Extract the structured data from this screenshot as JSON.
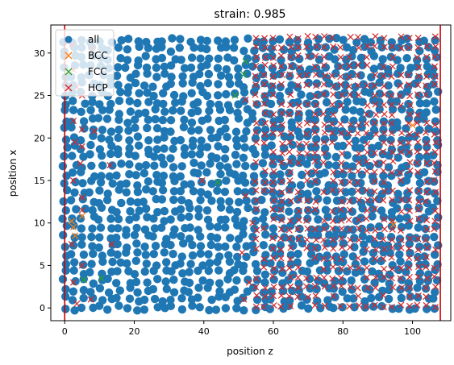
{
  "chart_data": {
    "type": "scatter",
    "title": "strain: 0.985",
    "xlabel": "position z",
    "ylabel": "position x",
    "xlim": [
      -4,
      111
    ],
    "ylim": [
      -1.5,
      33.3
    ],
    "xticks": [
      0,
      20,
      40,
      60,
      80,
      100
    ],
    "yticks": [
      0,
      5,
      10,
      15,
      20,
      25,
      30
    ],
    "grid": false,
    "legend_position": "top-left",
    "vertical_lines": [
      {
        "x": 0.0,
        "color": "#cc0000"
      },
      {
        "x": 108.0,
        "color": "#cc0000"
      }
    ],
    "series": [
      {
        "name": "all",
        "marker": "o",
        "color": "#1f77b4",
        "description": "dense cloud of atoms filling z 0–108, x 0–32"
      },
      {
        "name": "BCC",
        "marker": "x",
        "color": "#ff7f0e",
        "points": [
          [
            2.0,
            10.2
          ],
          [
            2.5,
            9.5
          ],
          [
            3.0,
            8.5
          ],
          [
            5.0,
            10.8
          ],
          [
            94.5,
            9.8
          ],
          [
            100.0,
            21.5
          ]
        ]
      },
      {
        "name": "FCC",
        "marker": "x",
        "color": "#2ca02c",
        "points": [
          [
            49.0,
            25.0
          ],
          [
            51.5,
            27.5
          ],
          [
            52.0,
            29.0
          ],
          [
            5.5,
            3.3
          ],
          [
            10.5,
            3.5
          ],
          [
            44.0,
            14.8
          ]
        ]
      },
      {
        "name": "HCP",
        "marker": "x",
        "color": "#d62728",
        "description": "crystalline lattice sites, sparse in z < 55 and dense grid for z 55–108",
        "sparse_points": [
          [
            2.0,
            31.0
          ],
          [
            2.5,
            28.0
          ],
          [
            3.5,
            26.0
          ],
          [
            5.0,
            25.0
          ],
          [
            2.5,
            22.0
          ],
          [
            5.0,
            21.0
          ],
          [
            8.5,
            20.8
          ],
          [
            3.0,
            19.5
          ],
          [
            5.0,
            19.0
          ],
          [
            4.5,
            17.0
          ],
          [
            2.5,
            15.0
          ],
          [
            5.0,
            13.0
          ],
          [
            13.0,
            16.8
          ],
          [
            5.0,
            11.5
          ],
          [
            2.0,
            7.5
          ],
          [
            13.5,
            7.5
          ],
          [
            5.0,
            5.0
          ],
          [
            2.5,
            3.0
          ],
          [
            7.5,
            1.0
          ],
          [
            3.5,
            0.5
          ],
          [
            39.5,
            15.0
          ],
          [
            52.0,
            13.2
          ],
          [
            54.0,
            10.0
          ],
          [
            51.0,
            6.5
          ],
          [
            53.0,
            3.0
          ],
          [
            51.5,
            1.0
          ],
          [
            52.0,
            24.5
          ],
          [
            8.0,
            30.5
          ]
        ]
      }
    ]
  }
}
